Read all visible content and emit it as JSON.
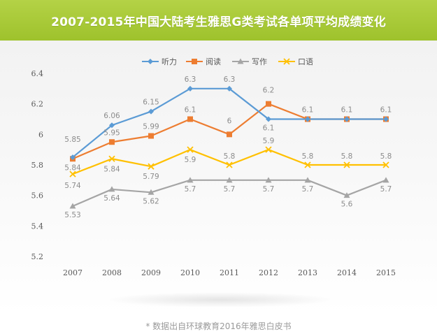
{
  "title": "2007-2015年中国大陆考生雅思G类考试各单项平均成绩变化",
  "footnote": "* 数据出自环球教育2016年雅思白皮书",
  "colors": {
    "header": "#a7c93a",
    "listening": "#5b9bd5",
    "reading": "#ed7d31",
    "writing": "#a5a5a5",
    "speaking": "#ffc000"
  },
  "chart_data": {
    "type": "line",
    "categories": [
      "2007",
      "2008",
      "2009",
      "2010",
      "2011",
      "2012",
      "2013",
      "2014",
      "2015"
    ],
    "ylim": [
      5.2,
      6.4
    ],
    "yticks": [
      "5.2",
      "5.4",
      "5.6",
      "5.8",
      "6",
      "6.2",
      "6.4"
    ],
    "legend_position": "top",
    "grid": false,
    "series": [
      {
        "name": "听力",
        "color": "#5b9bd5",
        "marker": "diamond",
        "values": [
          5.85,
          6.06,
          6.15,
          6.3,
          6.3,
          6.1,
          6.1,
          6.1,
          6.1
        ],
        "labels": [
          "5.85",
          "6.06",
          "6.15",
          "6.3",
          "6.3",
          "6.1",
          "",
          "",
          ""
        ]
      },
      {
        "name": "阅读",
        "color": "#ed7d31",
        "marker": "square",
        "values": [
          5.84,
          5.95,
          5.99,
          6.1,
          6.0,
          6.2,
          6.1,
          6.1,
          6.1
        ],
        "labels": [
          "5.84",
          "5.95",
          "5.99",
          "6.1",
          "6",
          "6.2",
          "6.1",
          "6.1",
          "6.1"
        ]
      },
      {
        "name": "写作",
        "color": "#a5a5a5",
        "marker": "triangle",
        "values": [
          5.53,
          5.64,
          5.62,
          5.7,
          5.7,
          5.7,
          5.7,
          5.6,
          5.7
        ],
        "labels": [
          "5.53",
          "5.64",
          "5.62",
          "5.7",
          "5.7",
          "5.7",
          "5.7",
          "5.6",
          "5.7"
        ]
      },
      {
        "name": "口语",
        "color": "#ffc000",
        "marker": "x",
        "values": [
          5.74,
          5.84,
          5.79,
          5.9,
          5.8,
          5.9,
          5.8,
          5.8,
          5.8
        ],
        "labels": [
          "5.74",
          "5.84",
          "5.79",
          "5.9",
          "5.8",
          "5.9",
          "5.8",
          "5.8",
          "5.8"
        ]
      }
    ]
  }
}
